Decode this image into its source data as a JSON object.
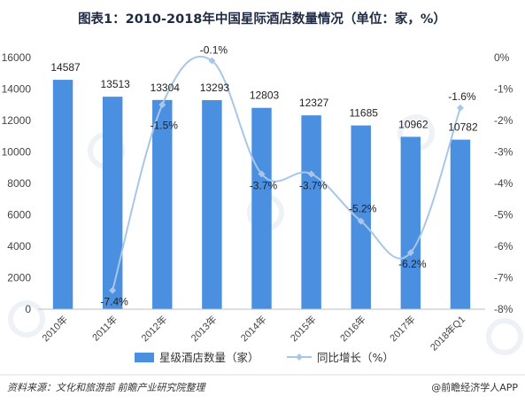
{
  "chart_data": {
    "type": "bar+line",
    "title": "图表1：2010-2018年中国星际酒店数量情况（单位：家，%）",
    "categories": [
      "2010年",
      "2011年",
      "2012年",
      "2013年",
      "2014年",
      "2015年",
      "2016年",
      "2017年",
      "2018年Q1"
    ],
    "series": [
      {
        "name": "星级酒店数量（家）",
        "type": "bar",
        "axis": "left",
        "values": [
          14587,
          13513,
          13304,
          13293,
          12803,
          12327,
          11685,
          10962,
          10782
        ],
        "labels": [
          "14587",
          "13513",
          "13304",
          "13293",
          "12803",
          "12327",
          "11685",
          "10962",
          "10782"
        ]
      },
      {
        "name": "同比增长（%）",
        "type": "line",
        "axis": "right",
        "values": [
          null,
          -7.4,
          -1.5,
          -0.1,
          -3.7,
          -3.7,
          -5.2,
          -6.2,
          -1.6
        ],
        "labels": [
          "",
          "-7.4%",
          "-1.5%",
          "-0.1%",
          "-3.7%",
          "-3.7%",
          "-5.2%",
          "-6.2%",
          "-1.6%"
        ]
      }
    ],
    "y_left": {
      "ylim": [
        0,
        16000
      ],
      "ticks": [
        "0",
        "2000",
        "4000",
        "6000",
        "8000",
        "10000",
        "12000",
        "14000",
        "16000"
      ]
    },
    "y_right": {
      "ylim": [
        -8,
        0
      ],
      "ticks": [
        "0%",
        "-1%",
        "-2%",
        "-3%",
        "-4%",
        "-5%",
        "-6%",
        "-7%",
        "-8%"
      ]
    },
    "legend_position": "bottom",
    "grid": false,
    "colors": {
      "bar": "#4a8fe0",
      "line": "#a8c6e8",
      "marker": "#a8c6e8"
    }
  },
  "footer": {
    "source": "资料来源：文化和旅游部 前瞻产业研究院整理",
    "brand": "@前瞻经济学人APP"
  }
}
